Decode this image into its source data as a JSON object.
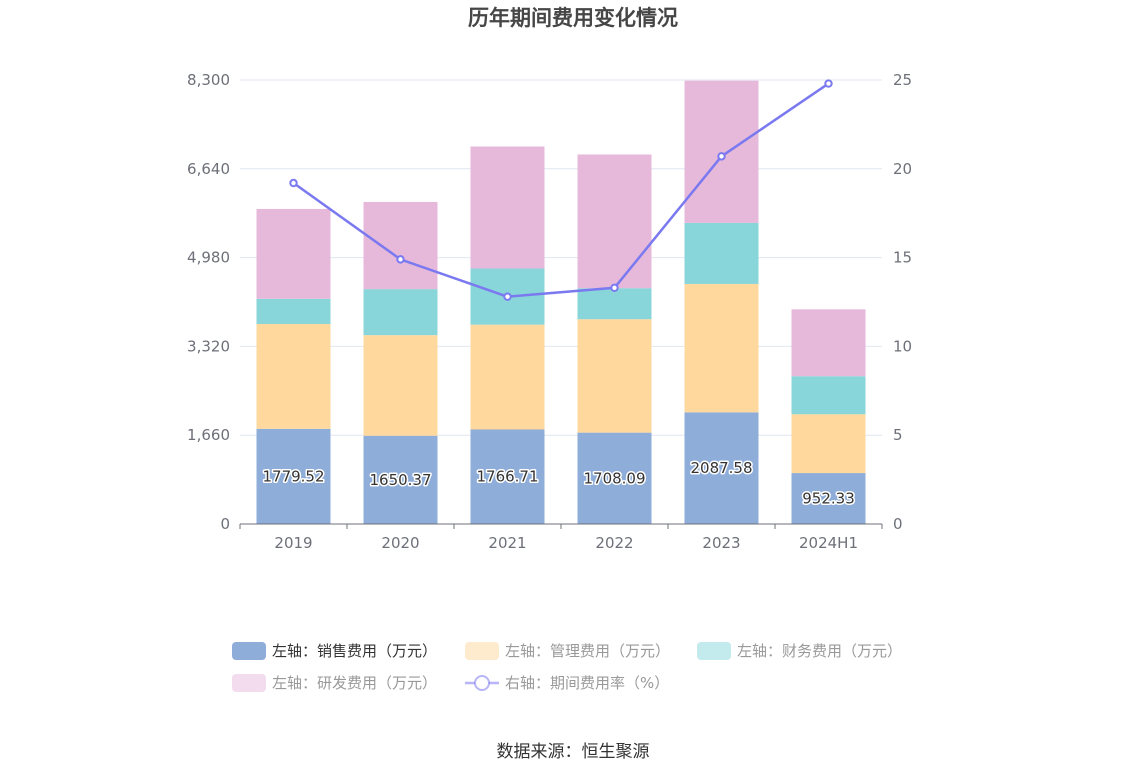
{
  "title": "历年期间费用变化情况",
  "source": "数据来源：恒生聚源",
  "colors": {
    "sales": "#8eadd9",
    "admin": "#fed89c",
    "finance": "#88d5da",
    "rd": "#e6b9db",
    "rate": "#7b79f0"
  },
  "chart_data": {
    "type": "bar",
    "stacked": true,
    "categories": [
      "2019",
      "2020",
      "2021",
      "2022",
      "2023",
      "2024H1"
    ],
    "left_axis": {
      "min": 0,
      "max": 8300,
      "ticks": [
        "0",
        "1,660",
        "3,320",
        "4,980",
        "6,640",
        "8,300"
      ]
    },
    "right_axis": {
      "min": 0,
      "max": 25,
      "ticks": [
        "0",
        "5",
        "10",
        "15",
        "20",
        "25"
      ]
    },
    "series": [
      {
        "key": "sales",
        "name": "左轴：销售费用（万元）",
        "axis": "left",
        "type": "bar",
        "values": [
          1779.52,
          1650.37,
          1766.71,
          1708.09,
          2087.58,
          952.33
        ],
        "labels": [
          "1779.52",
          "1650.37",
          "1766.71",
          "1708.09",
          "2087.58",
          "952.33"
        ]
      },
      {
        "key": "admin",
        "name": "左轴：管理费用（万元）",
        "axis": "left",
        "type": "bar",
        "values": [
          1960,
          1880,
          1960,
          2120,
          2400,
          1100
        ]
      },
      {
        "key": "finance",
        "name": "左轴：财务费用（万元）",
        "axis": "left",
        "type": "bar",
        "values": [
          470,
          860,
          1050,
          580,
          1140,
          710
        ]
      },
      {
        "key": "rd",
        "name": "左轴：研发费用（万元）",
        "axis": "left",
        "type": "bar",
        "values": [
          1680,
          1630,
          2280,
          2500,
          2660,
          1250
        ]
      },
      {
        "key": "rate",
        "name": "右轴：期间费用率（%）",
        "axis": "right",
        "type": "line",
        "values": [
          19.2,
          14.9,
          12.8,
          13.3,
          20.7,
          24.8
        ]
      }
    ],
    "legend_position": "bottom",
    "grid": true
  }
}
